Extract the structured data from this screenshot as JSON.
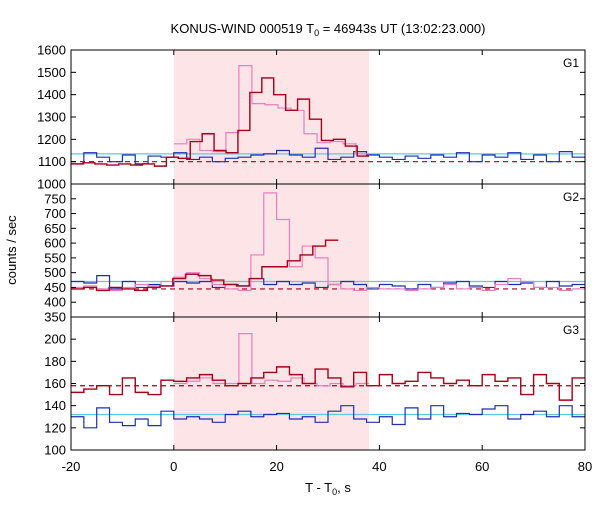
{
  "chart_data": {
    "type": "line",
    "title_main": "KONUS-WIND 000519 T",
    "title_sub": "0",
    "title_rest": " = 46943s UT (13:02:23.000)",
    "xlabel_main": "T - T",
    "xlabel_sub": "0",
    "xlabel_rest": ", s",
    "ylabel": "counts / sec",
    "xlim": [
      -20,
      80
    ],
    "x_ticks": [
      -20,
      0,
      20,
      40,
      60,
      80
    ],
    "highlight_interval": [
      0,
      38
    ],
    "colors": {
      "highlight": "#fde4e6",
      "dark_red": "#a3001a",
      "pink": "#e87fc0",
      "blue": "#1f2fb0",
      "cyan": "#62c8e0"
    },
    "panels": [
      {
        "label": "G1",
        "ylim": [
          1000,
          1600
        ],
        "y_ticks": [
          1000,
          1100,
          1200,
          1300,
          1400,
          1500,
          1600
        ],
        "y_tick_labels": [
          "1000",
          "1100",
          "1200",
          "1300",
          "1400",
          "1500",
          "1600"
        ],
        "background_level_red": 1100,
        "background_level_cyan": 1135,
        "dark_red_bins": {
          "x_start": -20,
          "x_end": 38,
          "values": [
            1090,
            1095,
            1090,
            1085,
            1090,
            1085,
            1090,
            1080,
            1120,
            1115,
            1190,
            1225,
            1150,
            1140,
            1240,
            1410,
            1475,
            1400,
            1330,
            1380,
            1290,
            1195,
            1200,
            1170,
            1125
          ]
        },
        "pink_bins": {
          "x_start": 0,
          "x_end": 38,
          "values": [
            1180,
            1200,
            1150,
            1145,
            1230,
            1530,
            1360,
            1355,
            1340,
            1330,
            1225,
            1185,
            1190,
            1180,
            1135
          ]
        },
        "blue_bins": {
          "x_start": -20,
          "x_end": 80,
          "values": [
            1090,
            1140,
            1120,
            1100,
            1130,
            1090,
            1125,
            1120,
            1140,
            1110,
            1120,
            1100,
            1115,
            1120,
            1130,
            1135,
            1150,
            1130,
            1120,
            1160,
            1110,
            1120,
            1145,
            1130,
            1120,
            1110,
            1125,
            1115,
            1130,
            1120,
            1140,
            1100,
            1130,
            1120,
            1140,
            1110,
            1130,
            1100,
            1145,
            1120
          ]
        }
      },
      {
        "label": "G2",
        "ylim": [
          350,
          800
        ],
        "y_ticks": [
          350,
          400,
          450,
          500,
          550,
          600,
          650,
          700,
          750
        ],
        "y_tick_labels": [
          "350",
          "400",
          "450",
          "500",
          "550",
          "600",
          "650",
          "700",
          "750"
        ],
        "background_level_red": 445,
        "background_level_cyan": 470,
        "dark_red_bins": {
          "x_start": -20,
          "x_end": 32,
          "values": [
            445,
            450,
            440,
            450,
            445,
            440,
            450,
            455,
            480,
            495,
            490,
            475,
            460,
            455,
            480,
            520,
            520,
            540,
            560,
            590,
            610
          ]
        },
        "pink_bins": {
          "x_start": -20,
          "x_end": 80,
          "values": [
            450,
            455,
            445,
            440,
            450,
            460,
            455,
            470,
            485,
            500,
            480,
            460,
            445,
            440,
            560,
            770,
            680,
            520,
            590,
            550,
            460,
            445,
            440,
            450,
            445,
            445,
            440,
            445,
            450,
            460,
            445,
            450,
            440,
            460,
            480,
            470,
            450,
            450,
            440,
            445
          ]
        },
        "blue_bins": {
          "x_start": -20,
          "x_end": 80,
          "values": [
            470,
            465,
            490,
            445,
            470,
            450,
            460,
            455,
            470,
            465,
            470,
            450,
            460,
            455,
            480,
            460,
            470,
            460,
            465,
            450,
            460,
            470,
            460,
            445,
            460,
            455,
            445,
            460,
            450,
            465,
            470,
            455,
            450,
            470,
            460,
            465,
            450,
            470,
            455,
            460
          ]
        }
      },
      {
        "label": "G3",
        "ylim": [
          100,
          220
        ],
        "y_ticks": [
          100,
          120,
          140,
          160,
          180,
          200
        ],
        "y_tick_labels": [
          "100",
          "120",
          "140",
          "160",
          "180",
          "200"
        ],
        "background_level_red": 158,
        "background_level_cyan": 132,
        "dark_red_bins": {
          "x_start": -20,
          "x_end": 80,
          "values": [
            152,
            155,
            158,
            150,
            165,
            152,
            150,
            163,
            162,
            165,
            168,
            163,
            158,
            160,
            165,
            170,
            175,
            168,
            160,
            173,
            165,
            157,
            170,
            158,
            168,
            160,
            162,
            170,
            165,
            160,
            163,
            158,
            168,
            162,
            165,
            150,
            168,
            160,
            145,
            165
          ]
        },
        "pink_bins": {
          "x_start": 0,
          "x_end": 38,
          "values": [
            160,
            162,
            165,
            160,
            160,
            205,
            160,
            163,
            162,
            165,
            160,
            158,
            160,
            158,
            160
          ]
        },
        "blue_bins": {
          "x_start": -20,
          "x_end": 80,
          "values": [
            130,
            120,
            138,
            125,
            122,
            128,
            122,
            135,
            128,
            130,
            128,
            125,
            132,
            135,
            130,
            132,
            133,
            128,
            130,
            125,
            135,
            140,
            128,
            125,
            130,
            123,
            138,
            128,
            140,
            130,
            133,
            132,
            137,
            140,
            128,
            132,
            135,
            130,
            140,
            130
          ]
        }
      }
    ]
  }
}
